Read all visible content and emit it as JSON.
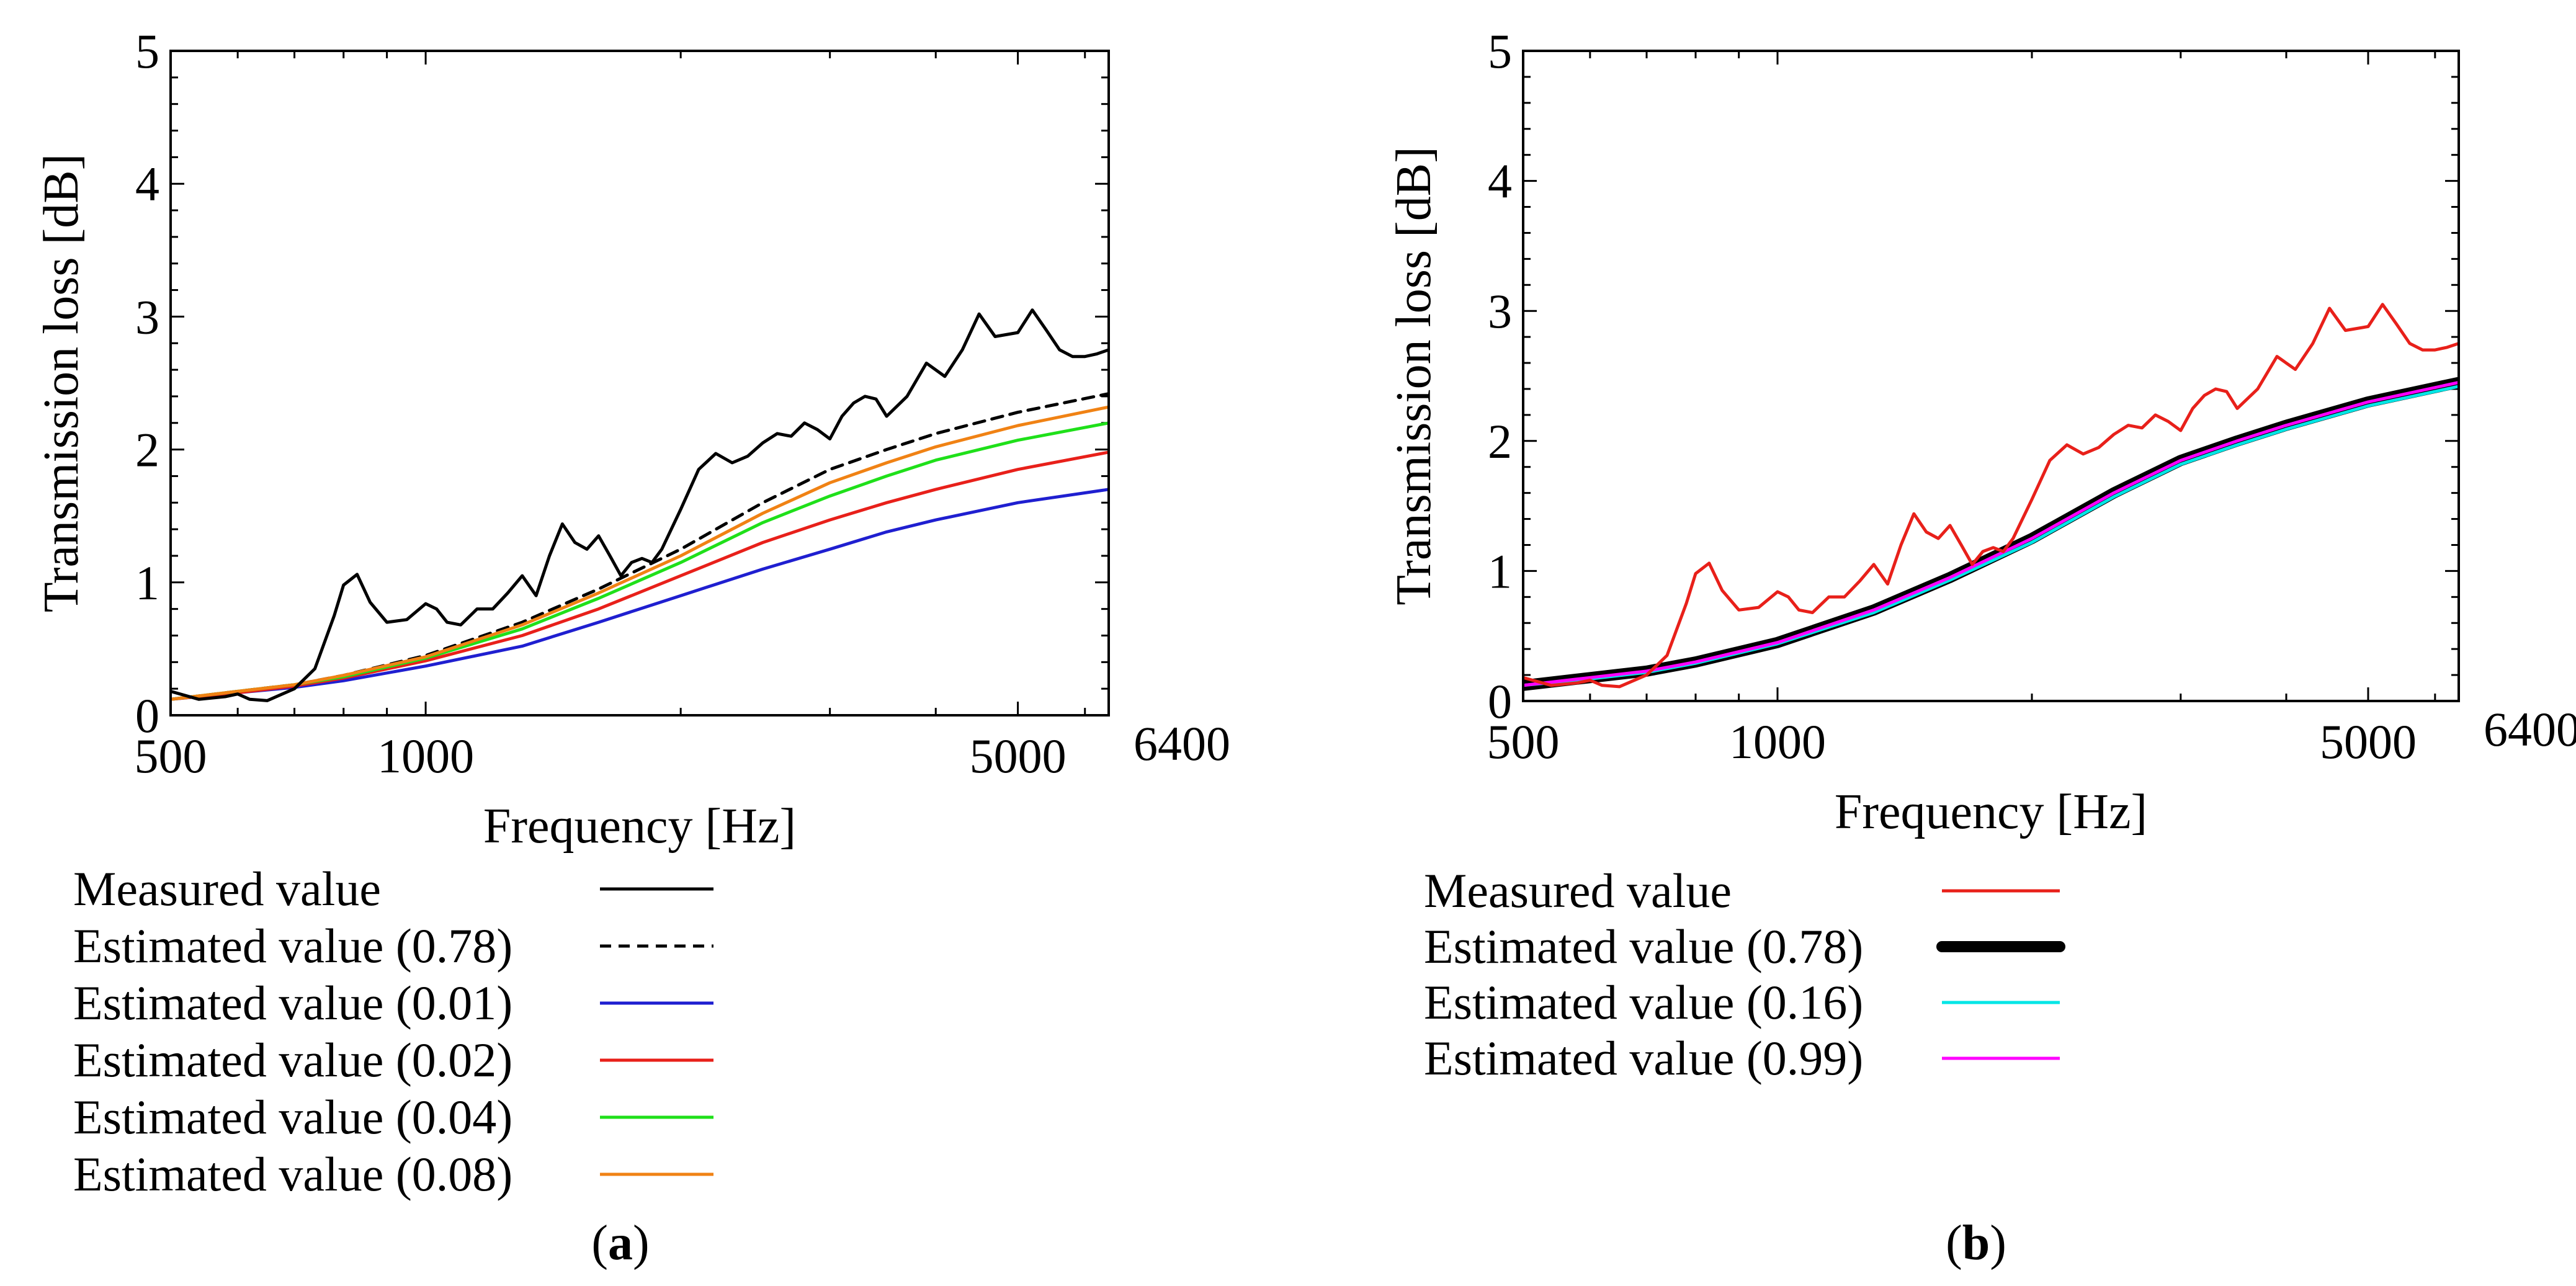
{
  "chart_data": [
    {
      "type": "line",
      "panel": "a",
      "caption_open": "(",
      "caption_letter": "a",
      "caption_close": ")",
      "xlabel": "Frequency [Hz]",
      "ylabel": "Transmission loss [dB]",
      "x_scale": "log",
      "xlim": [
        500,
        6400
      ],
      "ylim": [
        0,
        5
      ],
      "xtick_labels": [
        "500",
        "1000",
        "5000",
        "6400"
      ],
      "ytick_labels": [
        "0",
        "1",
        "2",
        "3",
        "4",
        "5"
      ],
      "series": [
        {
          "name": "Measured value",
          "color": "#000000",
          "dash": "solid",
          "x": [
            500,
            540,
            580,
            600,
            620,
            650,
            700,
            740,
            780,
            800,
            830,
            860,
            900,
            950,
            1000,
            1030,
            1060,
            1100,
            1150,
            1200,
            1250,
            1300,
            1350,
            1400,
            1450,
            1500,
            1550,
            1600,
            1650,
            1700,
            1750,
            1800,
            1850,
            1900,
            2000,
            2100,
            2200,
            2300,
            2400,
            2500,
            2600,
            2700,
            2800,
            2900,
            3000,
            3100,
            3200,
            3300,
            3400,
            3500,
            3700,
            3900,
            4100,
            4300,
            4500,
            4700,
            5000,
            5200,
            5400,
            5600,
            5800,
            6000,
            6200,
            6400
          ],
          "y": [
            0.18,
            0.12,
            0.14,
            0.16,
            0.12,
            0.11,
            0.2,
            0.35,
            0.75,
            0.98,
            1.06,
            0.85,
            0.7,
            0.72,
            0.84,
            0.8,
            0.7,
            0.68,
            0.8,
            0.8,
            0.92,
            1.05,
            0.9,
            1.2,
            1.44,
            1.3,
            1.25,
            1.35,
            1.2,
            1.05,
            1.15,
            1.18,
            1.15,
            1.25,
            1.55,
            1.85,
            1.97,
            1.9,
            1.95,
            2.05,
            2.12,
            2.1,
            2.2,
            2.15,
            2.08,
            2.25,
            2.35,
            2.4,
            2.38,
            2.25,
            2.4,
            2.65,
            2.55,
            2.75,
            3.02,
            2.85,
            2.88,
            3.05,
            2.9,
            2.75,
            2.7,
            2.7,
            2.72,
            2.75
          ]
        },
        {
          "name": "Estimated value (0.78)",
          "color": "#000000",
          "dash": "dashed",
          "x": [
            500,
            600,
            700,
            800,
            1000,
            1300,
            1600,
            2000,
            2500,
            3000,
            3500,
            4000,
            5000,
            6400
          ],
          "y": [
            0.12,
            0.18,
            0.23,
            0.3,
            0.45,
            0.7,
            0.95,
            1.25,
            1.6,
            1.85,
            2.0,
            2.12,
            2.28,
            2.42
          ]
        },
        {
          "name": "Estimated value (0.01)",
          "color": "#1f1fd0",
          "dash": "solid",
          "x": [
            500,
            600,
            700,
            800,
            1000,
            1300,
            1600,
            2000,
            2500,
            3000,
            3500,
            4000,
            5000,
            6400
          ],
          "y": [
            0.12,
            0.17,
            0.21,
            0.26,
            0.37,
            0.52,
            0.7,
            0.9,
            1.1,
            1.25,
            1.38,
            1.47,
            1.6,
            1.7
          ]
        },
        {
          "name": "Estimated value (0.02)",
          "color": "#e8201a",
          "dash": "solid",
          "x": [
            500,
            600,
            700,
            800,
            1000,
            1300,
            1600,
            2000,
            2500,
            3000,
            3500,
            4000,
            5000,
            6400
          ],
          "y": [
            0.12,
            0.17,
            0.22,
            0.28,
            0.41,
            0.6,
            0.8,
            1.05,
            1.3,
            1.47,
            1.6,
            1.7,
            1.85,
            1.98
          ]
        },
        {
          "name": "Estimated value (0.04)",
          "color": "#1fe01a",
          "dash": "solid",
          "x": [
            500,
            600,
            700,
            800,
            1000,
            1300,
            1600,
            2000,
            2500,
            3000,
            3500,
            4000,
            5000,
            6400
          ],
          "y": [
            0.12,
            0.18,
            0.23,
            0.29,
            0.43,
            0.65,
            0.88,
            1.15,
            1.45,
            1.65,
            1.8,
            1.92,
            2.07,
            2.2
          ]
        },
        {
          "name": "Estimated value (0.08)",
          "color": "#f08214",
          "dash": "solid",
          "x": [
            500,
            600,
            700,
            800,
            1000,
            1300,
            1600,
            2000,
            2500,
            3000,
            3500,
            4000,
            5000,
            6400
          ],
          "y": [
            0.12,
            0.18,
            0.23,
            0.3,
            0.44,
            0.68,
            0.92,
            1.2,
            1.52,
            1.75,
            1.9,
            2.02,
            2.18,
            2.32
          ]
        }
      ]
    },
    {
      "type": "line",
      "panel": "b",
      "caption_open": "(",
      "caption_letter": "b",
      "caption_close": ")",
      "xlabel": "Frequency [Hz]",
      "ylabel": "Transmission loss [dB]",
      "x_scale": "log",
      "xlim": [
        500,
        6400
      ],
      "ylim": [
        0,
        5
      ],
      "xtick_labels": [
        "500",
        "1000",
        "5000",
        "6400"
      ],
      "ytick_labels": [
        "0",
        "1",
        "2",
        "3",
        "4",
        "5"
      ],
      "series": [
        {
          "name": "Measured value",
          "color": "#e8201a",
          "dash": "solid",
          "x": [
            500,
            540,
            580,
            600,
            620,
            650,
            700,
            740,
            780,
            800,
            830,
            860,
            900,
            950,
            1000,
            1030,
            1060,
            1100,
            1150,
            1200,
            1250,
            1300,
            1350,
            1400,
            1450,
            1500,
            1550,
            1600,
            1650,
            1700,
            1750,
            1800,
            1850,
            1900,
            2000,
            2100,
            2200,
            2300,
            2400,
            2500,
            2600,
            2700,
            2800,
            2900,
            3000,
            3100,
            3200,
            3300,
            3400,
            3500,
            3700,
            3900,
            4100,
            4300,
            4500,
            4700,
            5000,
            5200,
            5400,
            5600,
            5800,
            6000,
            6200,
            6400
          ],
          "y": [
            0.18,
            0.12,
            0.14,
            0.16,
            0.12,
            0.11,
            0.2,
            0.35,
            0.75,
            0.98,
            1.06,
            0.85,
            0.7,
            0.72,
            0.84,
            0.8,
            0.7,
            0.68,
            0.8,
            0.8,
            0.92,
            1.05,
            0.9,
            1.2,
            1.44,
            1.3,
            1.25,
            1.35,
            1.2,
            1.05,
            1.15,
            1.18,
            1.15,
            1.25,
            1.55,
            1.85,
            1.97,
            1.9,
            1.95,
            2.05,
            2.12,
            2.1,
            2.2,
            2.15,
            2.08,
            2.25,
            2.35,
            2.4,
            2.38,
            2.25,
            2.4,
            2.65,
            2.55,
            2.75,
            3.02,
            2.85,
            2.88,
            3.05,
            2.9,
            2.75,
            2.7,
            2.7,
            2.72,
            2.75
          ]
        },
        {
          "name": "Estimated value (0.78)",
          "color": "#000000",
          "dash": "thick",
          "x": [
            500,
            600,
            700,
            800,
            1000,
            1300,
            1600,
            2000,
            2500,
            3000,
            3500,
            4000,
            5000,
            6400
          ],
          "y": [
            0.12,
            0.18,
            0.23,
            0.3,
            0.45,
            0.7,
            0.95,
            1.25,
            1.6,
            1.85,
            2.0,
            2.12,
            2.3,
            2.45
          ]
        },
        {
          "name": "Estimated value (0.16)",
          "color": "#00e6e6",
          "dash": "solid",
          "x": [
            500,
            600,
            700,
            800,
            1000,
            1300,
            1600,
            2000,
            2500,
            3000,
            3500,
            4000,
            5000,
            6400
          ],
          "y": [
            0.12,
            0.17,
            0.22,
            0.29,
            0.44,
            0.68,
            0.93,
            1.22,
            1.57,
            1.82,
            1.97,
            2.09,
            2.27,
            2.42
          ]
        },
        {
          "name": "Estimated value (0.99)",
          "color": "#ff00ff",
          "dash": "solid",
          "x": [
            500,
            600,
            700,
            800,
            1000,
            1300,
            1600,
            2000,
            2500,
            3000,
            3500,
            4000,
            5000,
            6400
          ],
          "y": [
            0.12,
            0.18,
            0.23,
            0.3,
            0.45,
            0.7,
            0.95,
            1.25,
            1.6,
            1.85,
            2.0,
            2.12,
            2.3,
            2.45
          ]
        }
      ]
    }
  ]
}
